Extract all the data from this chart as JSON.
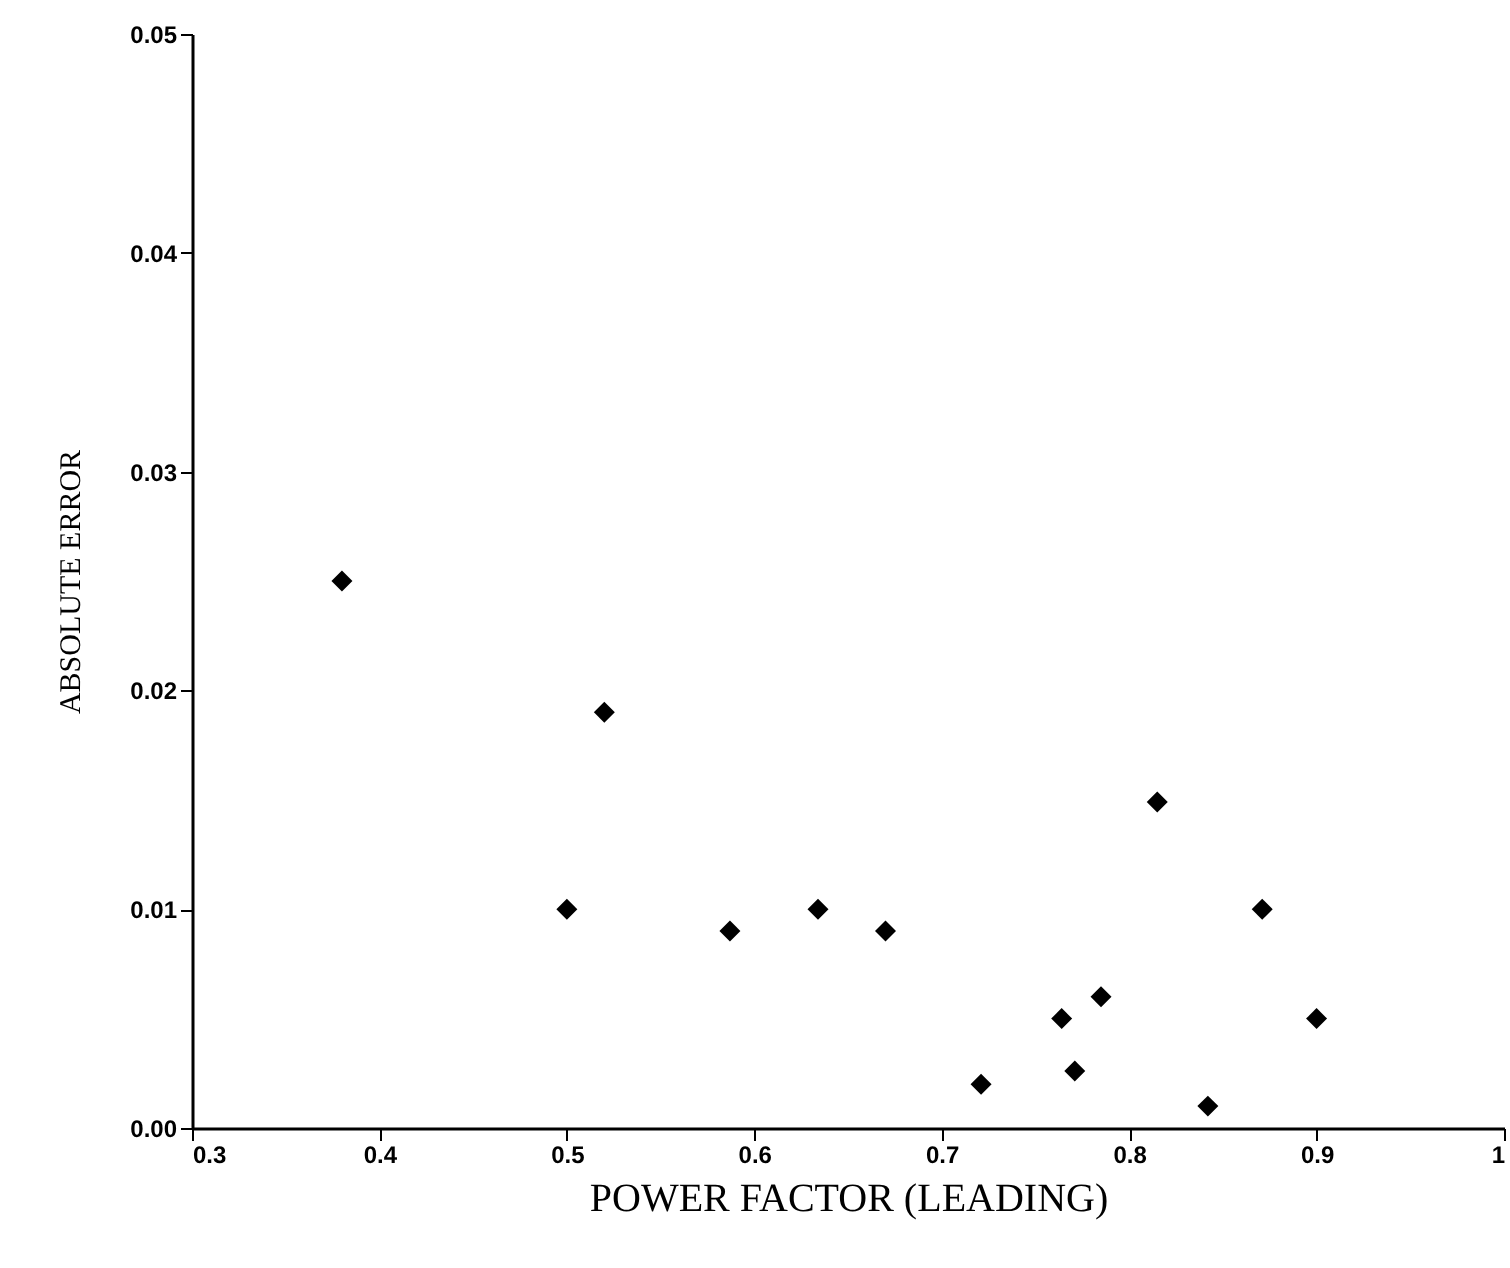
{
  "chart_data": {
    "type": "scatter",
    "xlabel": "POWER FACTOR (LEADING)",
    "ylabel": "ABSOLUTE ERROR",
    "x": [
      0.38,
      0.5,
      0.52,
      0.587,
      0.634,
      0.67,
      0.721,
      0.764,
      0.771,
      0.785,
      0.815,
      0.842,
      0.871,
      0.9
    ],
    "series": [
      {
        "color": "#000000",
        "values": [
          0.025,
          0.01,
          0.019,
          0.009,
          0.01,
          0.009,
          0.002,
          0.005,
          0.0026,
          0.006,
          0.0149,
          0.001,
          0.01,
          0.005
        ]
      }
    ],
    "xlim": [
      0.3,
      1
    ],
    "xticks": [
      0.3,
      0.4,
      0.5,
      0.6,
      0.7,
      0.8,
      0.9,
      1
    ],
    "ylim": [
      0,
      0.05
    ],
    "yticks": [
      {
        "value": 0,
        "label": "0.00"
      },
      0.01,
      0.02,
      0.03,
      0.04,
      0.05
    ],
    "marker": "diamond",
    "grid": false
  }
}
